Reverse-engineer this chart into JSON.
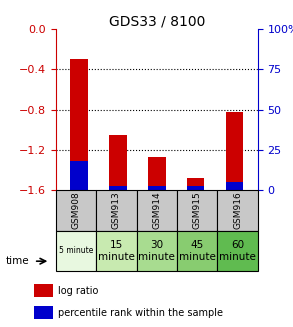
{
  "title": "GDS33 / 8100",
  "samples": [
    "GSM908",
    "GSM913",
    "GSM914",
    "GSM915",
    "GSM916"
  ],
  "time_labels": [
    "5 minute",
    "15\nminute",
    "30\nminute",
    "45\nminute",
    "60\nminute"
  ],
  "time_bg_colors": [
    "#e8f8e0",
    "#c8eab0",
    "#a8dc90",
    "#88cc70",
    "#60bb50"
  ],
  "log_ratios": [
    -0.3,
    -1.05,
    -1.27,
    -1.48,
    -0.82
  ],
  "percentile_ranks": [
    18,
    2,
    2,
    2,
    5
  ],
  "ylim_left": [
    -1.6,
    0.0
  ],
  "ylim_right": [
    0,
    100
  ],
  "yticks_left": [
    0,
    -0.4,
    -0.8,
    -1.2,
    -1.6
  ],
  "yticks_right": [
    0,
    25,
    50,
    75,
    100
  ],
  "left_axis_color": "#cc0000",
  "right_axis_color": "#0000cc",
  "bar_color_log": "#cc0000",
  "bar_color_pct": "#0000cc",
  "bg_color_gsm": "#c8c8c8",
  "legend_log": "log ratio",
  "legend_pct": "percentile rank within the sample",
  "bar_width": 0.45
}
